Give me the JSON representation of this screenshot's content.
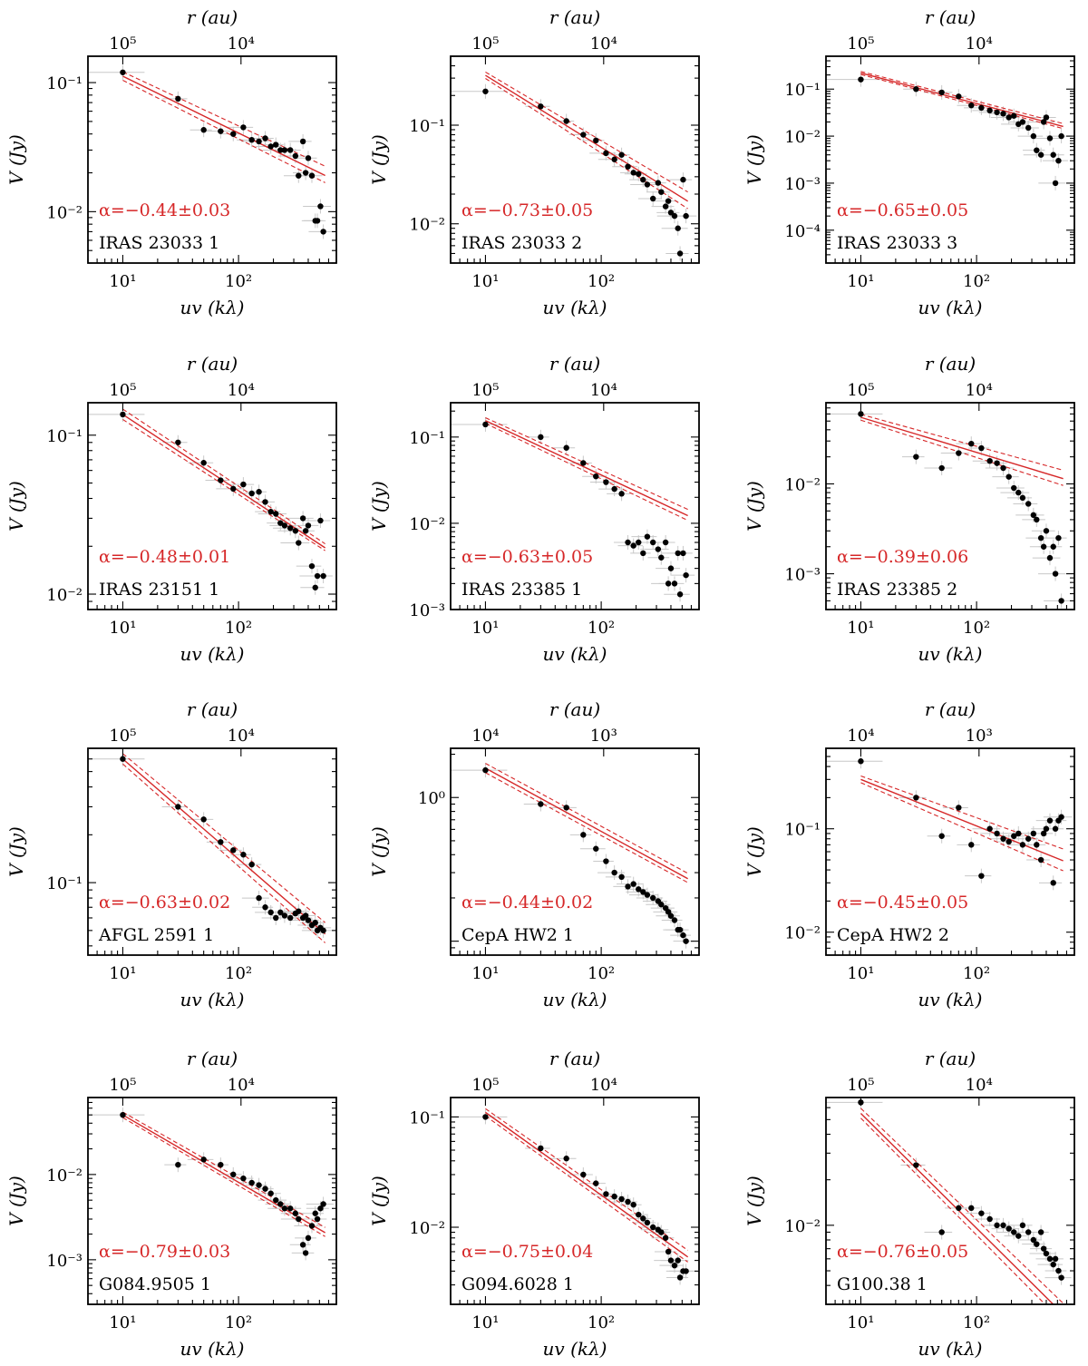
{
  "figure_title": "",
  "chart_data": [
    {
      "type": "scatter",
      "source": "IRAS 23033 1",
      "alpha_label": "α=−0.44±0.03",
      "xlabel": "uv (kλ)",
      "ylabel": "V (Jy)",
      "top_xlabel": "r (au)",
      "xlim": [
        5,
        700
      ],
      "ylim": [
        0.004,
        0.16
      ],
      "xticks": [
        10,
        100
      ],
      "xtick_labels": [
        "10¹",
        "10²"
      ],
      "yticks": [
        0.01,
        0.1
      ],
      "ytick_labels": [
        "10⁻²",
        "10⁻¹"
      ],
      "top_ticks": [
        10,
        105
      ],
      "top_tick_labels": [
        "10⁵",
        "10⁴"
      ],
      "fit": {
        "slope": -0.44,
        "y10": 0.112,
        "dy_hi": 0.06,
        "dy_lo": 0.06
      },
      "x": [
        10,
        30,
        50,
        70,
        90,
        110,
        130,
        150,
        170,
        190,
        210,
        230,
        250,
        280,
        310,
        330,
        360,
        380,
        400,
        430,
        460,
        480,
        510,
        540
      ],
      "y": [
        0.12,
        0.075,
        0.043,
        0.042,
        0.04,
        0.045,
        0.036,
        0.035,
        0.037,
        0.032,
        0.033,
        0.03,
        0.03,
        0.03,
        0.027,
        0.019,
        0.035,
        0.02,
        0.026,
        0.019,
        0.0085,
        0.0085,
        0.011,
        0.007
      ]
    },
    {
      "type": "scatter",
      "source": "IRAS 23033 2",
      "alpha_label": "α=−0.73±0.05",
      "xlabel": "uv (kλ)",
      "ylabel": "V (Jy)",
      "top_xlabel": "r (au)",
      "xlim": [
        5,
        700
      ],
      "ylim": [
        0.004,
        0.5
      ],
      "xticks": [
        10,
        100
      ],
      "xtick_labels": [
        "10¹",
        "10²"
      ],
      "yticks": [
        0.01,
        0.1
      ],
      "ytick_labels": [
        "10⁻²",
        "10⁻¹"
      ],
      "top_ticks": [
        10,
        105
      ],
      "top_tick_labels": [
        "10⁵",
        "10⁴"
      ],
      "fit": {
        "slope": -0.73,
        "y10": 0.32,
        "dy_hi": 0.08,
        "dy_lo": 0.08
      },
      "x": [
        10,
        30,
        50,
        70,
        90,
        110,
        130,
        150,
        170,
        190,
        210,
        230,
        250,
        280,
        310,
        330,
        360,
        380,
        400,
        430,
        460,
        480,
        510,
        540
      ],
      "y": [
        0.22,
        0.155,
        0.11,
        0.08,
        0.07,
        0.052,
        0.045,
        0.05,
        0.038,
        0.033,
        0.032,
        0.028,
        0.025,
        0.018,
        0.026,
        0.021,
        0.015,
        0.017,
        0.013,
        0.012,
        0.009,
        0.005,
        0.028,
        0.012
      ]
    },
    {
      "type": "scatter",
      "source": "IRAS 23033 3",
      "alpha_label": "α=−0.65±0.05",
      "xlabel": "uv (kλ)",
      "ylabel": "V (Jy)",
      "top_xlabel": "r (au)",
      "xlim": [
        5,
        700
      ],
      "ylim": [
        2e-05,
        0.5
      ],
      "xticks": [
        10,
        100
      ],
      "xtick_labels": [
        "10¹",
        "10²"
      ],
      "yticks": [
        0.0001,
        0.001,
        0.01,
        0.1
      ],
      "ytick_labels": [
        "10⁻⁴",
        "10⁻³",
        "10⁻²",
        "10⁻¹"
      ],
      "top_ticks": [
        10,
        105
      ],
      "top_tick_labels": [
        "10⁵",
        "10⁴"
      ],
      "fit": {
        "slope": -0.65,
        "y10": 0.22,
        "dy_hi": 0.05,
        "dy_lo": 0.05
      },
      "x": [
        10,
        30,
        50,
        70,
        90,
        110,
        130,
        150,
        170,
        190,
        210,
        230,
        250,
        280,
        310,
        330,
        360,
        380,
        400,
        430,
        460,
        480,
        510,
        540
      ],
      "y": [
        0.16,
        0.1,
        0.085,
        0.07,
        0.045,
        0.04,
        0.035,
        0.032,
        0.03,
        0.025,
        0.027,
        0.018,
        0.02,
        0.015,
        0.01,
        0.005,
        0.004,
        0.02,
        0.025,
        0.009,
        0.004,
        0.001,
        0.003,
        0.01
      ]
    },
    {
      "type": "scatter",
      "source": "IRAS 23151 1",
      "alpha_label": "α=−0.48±0.01",
      "xlabel": "uv (kλ)",
      "ylabel": "V (Jy)",
      "top_xlabel": "r (au)",
      "xlim": [
        5,
        700
      ],
      "ylim": [
        0.008,
        0.16
      ],
      "xticks": [
        10,
        100
      ],
      "xtick_labels": [
        "10¹",
        "10²"
      ],
      "yticks": [
        0.01,
        0.1
      ],
      "ytick_labels": [
        "10⁻²",
        "10⁻¹"
      ],
      "top_ticks": [
        10,
        105
      ],
      "top_tick_labels": [
        "10⁵",
        "10⁴"
      ],
      "fit": {
        "slope": -0.48,
        "y10": 0.135,
        "dy_hi": 0.02,
        "dy_lo": 0.02
      },
      "x": [
        10,
        30,
        50,
        70,
        90,
        110,
        130,
        150,
        170,
        190,
        210,
        230,
        250,
        280,
        310,
        330,
        360,
        380,
        400,
        430,
        460,
        480,
        510,
        540
      ],
      "y": [
        0.135,
        0.09,
        0.067,
        0.052,
        0.046,
        0.049,
        0.043,
        0.044,
        0.038,
        0.033,
        0.032,
        0.028,
        0.027,
        0.026,
        0.025,
        0.021,
        0.03,
        0.025,
        0.027,
        0.015,
        0.011,
        0.013,
        0.029,
        0.013
      ]
    },
    {
      "type": "scatter",
      "source": "IRAS 23385 1",
      "alpha_label": "α=−0.63±0.05",
      "xlabel": "uv (kλ)",
      "ylabel": "V (Jy)",
      "top_xlabel": "r (au)",
      "xlim": [
        5,
        700
      ],
      "ylim": [
        0.001,
        0.25
      ],
      "xticks": [
        10,
        100
      ],
      "xtick_labels": [
        "10¹",
        "10²"
      ],
      "yticks": [
        0.001,
        0.01,
        0.1
      ],
      "ytick_labels": [
        "10⁻³",
        "10⁻²",
        "10⁻¹"
      ],
      "top_ticks": [
        10,
        105
      ],
      "top_tick_labels": [
        "10⁵",
        "10⁴"
      ],
      "fit": {
        "slope": -0.63,
        "y10": 0.155,
        "dy_hi": 0.06,
        "dy_lo": 0.06
      },
      "x": [
        10,
        30,
        50,
        70,
        90,
        110,
        130,
        150,
        170,
        190,
        210,
        230,
        250,
        280,
        310,
        330,
        360,
        380,
        400,
        430,
        460,
        480,
        510,
        540
      ],
      "y": [
        0.14,
        0.1,
        0.075,
        0.05,
        0.035,
        0.03,
        0.025,
        0.022,
        0.006,
        0.0055,
        0.006,
        0.0045,
        0.007,
        0.006,
        0.005,
        0.004,
        0.006,
        0.002,
        0.003,
        0.002,
        0.0045,
        0.0015,
        0.0045,
        0.0025
      ]
    },
    {
      "type": "scatter",
      "source": "IRAS 23385 2",
      "alpha_label": "α=−0.39±0.06",
      "xlabel": "uv (kλ)",
      "ylabel": "V (Jy)",
      "top_xlabel": "r (au)",
      "xlim": [
        5,
        700
      ],
      "ylim": [
        0.0004,
        0.08
      ],
      "xticks": [
        10,
        100
      ],
      "xtick_labels": [
        "10¹",
        "10²"
      ],
      "yticks": [
        0.001,
        0.01
      ],
      "ytick_labels": [
        "10⁻³",
        "10⁻²"
      ],
      "top_ticks": [
        10,
        105
      ],
      "top_tick_labels": [
        "10⁵",
        "10⁴"
      ],
      "fit": {
        "slope": -0.39,
        "y10": 0.055,
        "dy_hi": 0.08,
        "dy_lo": 0.08
      },
      "x": [
        10,
        30,
        50,
        70,
        90,
        110,
        130,
        150,
        170,
        190,
        210,
        230,
        250,
        280,
        310,
        330,
        360,
        380,
        400,
        430,
        460,
        480,
        510,
        540
      ],
      "y": [
        0.06,
        0.02,
        0.015,
        0.022,
        0.028,
        0.025,
        0.018,
        0.017,
        0.015,
        0.012,
        0.009,
        0.008,
        0.007,
        0.006,
        0.0045,
        0.004,
        0.0025,
        0.002,
        0.003,
        0.0015,
        0.002,
        0.001,
        0.0025,
        0.0005
      ]
    },
    {
      "type": "scatter",
      "source": "AFGL 2591 1",
      "alpha_label": "α=−0.63±0.02",
      "xlabel": "uv (kλ)",
      "ylabel": "V (Jy)",
      "top_xlabel": "r (au)",
      "xlim": [
        5,
        700
      ],
      "ylim": [
        0.035,
        0.7
      ],
      "xticks": [
        10,
        100
      ],
      "xtick_labels": [
        "10¹",
        "10²"
      ],
      "yticks": [
        0.1
      ],
      "ytick_labels": [
        "10⁻¹"
      ],
      "top_ticks": [
        10,
        105
      ],
      "top_tick_labels": [
        "10⁵",
        "10⁴"
      ],
      "fit": {
        "slope": -0.63,
        "y10": 0.6,
        "dy_hi": 0.06,
        "dy_lo": 0.06
      },
      "x": [
        10,
        30,
        50,
        70,
        90,
        110,
        130,
        150,
        170,
        190,
        210,
        230,
        250,
        280,
        310,
        330,
        360,
        380,
        400,
        430,
        460,
        480,
        510,
        540
      ],
      "y": [
        0.6,
        0.3,
        0.25,
        0.18,
        0.16,
        0.15,
        0.13,
        0.08,
        0.07,
        0.065,
        0.06,
        0.065,
        0.062,
        0.06,
        0.064,
        0.066,
        0.06,
        0.062,
        0.058,
        0.054,
        0.056,
        0.05,
        0.052,
        0.05
      ]
    },
    {
      "type": "scatter",
      "source": "CepA HW2 1",
      "alpha_label": "α=−0.44±0.02",
      "xlabel": "uv (kλ)",
      "ylabel": "V (Jy)",
      "top_xlabel": "r (au)",
      "xlim": [
        5,
        700
      ],
      "ylim": [
        0.08,
        2.2
      ],
      "xticks": [
        10,
        100
      ],
      "xtick_labels": [
        "10¹",
        "10²"
      ],
      "yticks": [
        1
      ],
      "ytick_labels": [
        "10⁰"
      ],
      "top_ticks": [
        10,
        105
      ],
      "top_tick_labels": [
        "10⁴",
        "10³"
      ],
      "fit": {
        "slope": -0.44,
        "y10": 1.6,
        "dy_hi": 0.03,
        "dy_lo": 0.03
      },
      "x": [
        10,
        30,
        50,
        70,
        90,
        110,
        130,
        150,
        170,
        190,
        210,
        230,
        250,
        280,
        310,
        330,
        360,
        380,
        400,
        430,
        460,
        480,
        510,
        540
      ],
      "y": [
        1.55,
        0.9,
        0.85,
        0.55,
        0.44,
        0.36,
        0.3,
        0.28,
        0.24,
        0.25,
        0.23,
        0.22,
        0.21,
        0.2,
        0.19,
        0.18,
        0.17,
        0.16,
        0.15,
        0.14,
        0.12,
        0.12,
        0.11,
        0.1
      ]
    },
    {
      "type": "scatter",
      "source": "CepA HW2 2",
      "alpha_label": "α=−0.45±0.05",
      "xlabel": "uv (kλ)",
      "ylabel": "V (Jy)",
      "top_xlabel": "r (au)",
      "xlim": [
        5,
        700
      ],
      "ylim": [
        0.006,
        0.6
      ],
      "xticks": [
        10,
        100
      ],
      "xtick_labels": [
        "10¹",
        "10²"
      ],
      "yticks": [
        0.01,
        0.1
      ],
      "ytick_labels": [
        "10⁻²",
        "10⁻¹"
      ],
      "top_ticks": [
        10,
        105
      ],
      "top_tick_labels": [
        "10⁴",
        "10³"
      ],
      "fit": {
        "slope": -0.45,
        "y10": 0.3,
        "dy_hi": 0.1,
        "dy_lo": 0.1
      },
      "x": [
        10,
        30,
        50,
        70,
        90,
        110,
        130,
        150,
        170,
        190,
        210,
        230,
        250,
        280,
        310,
        330,
        360,
        380,
        400,
        430,
        460,
        480,
        510,
        540
      ],
      "y": [
        0.45,
        0.2,
        0.085,
        0.16,
        0.07,
        0.035,
        0.1,
        0.09,
        0.08,
        0.075,
        0.085,
        0.09,
        0.07,
        0.08,
        0.09,
        0.07,
        0.05,
        0.09,
        0.1,
        0.12,
        0.03,
        0.1,
        0.12,
        0.13
      ]
    },
    {
      "type": "scatter",
      "source": "G084.9505 1",
      "alpha_label": "α=−0.79±0.03",
      "xlabel": "uv (kλ)",
      "ylabel": "V (Jy)",
      "top_xlabel": "r (au)",
      "xlim": [
        5,
        700
      ],
      "ylim": [
        0.0003,
        0.08
      ],
      "xticks": [
        10,
        100
      ],
      "xtick_labels": [
        "10¹",
        "10²"
      ],
      "yticks": [
        0.001,
        0.01
      ],
      "ytick_labels": [
        "10⁻³",
        "10⁻²"
      ],
      "top_ticks": [
        10,
        105
      ],
      "top_tick_labels": [
        "10⁵",
        "10⁴"
      ],
      "fit": {
        "slope": -0.79,
        "y10": 0.05,
        "dy_hi": 0.05,
        "dy_lo": 0.05
      },
      "x": [
        10,
        30,
        50,
        70,
        90,
        110,
        130,
        150,
        170,
        190,
        210,
        230,
        250,
        280,
        310,
        330,
        360,
        380,
        400,
        430,
        460,
        480,
        510,
        540
      ],
      "y": [
        0.05,
        0.013,
        0.015,
        0.013,
        0.01,
        0.009,
        0.008,
        0.0075,
        0.0068,
        0.006,
        0.005,
        0.0045,
        0.004,
        0.004,
        0.0035,
        0.003,
        0.0015,
        0.0012,
        0.0018,
        0.0025,
        0.0035,
        0.003,
        0.004,
        0.0045
      ]
    },
    {
      "type": "scatter",
      "source": "G094.6028 1",
      "alpha_label": "α=−0.75±0.04",
      "xlabel": "uv (kλ)",
      "ylabel": "V (Jy)",
      "top_xlabel": "r (au)",
      "xlim": [
        5,
        700
      ],
      "ylim": [
        0.002,
        0.15
      ],
      "xticks": [
        10,
        100
      ],
      "xtick_labels": [
        "10¹",
        "10²"
      ],
      "yticks": [
        0.01,
        0.1
      ],
      "ytick_labels": [
        "10⁻²",
        "10⁻¹"
      ],
      "top_ticks": [
        10,
        105
      ],
      "top_tick_labels": [
        "10⁵",
        "10⁴"
      ],
      "fit": {
        "slope": -0.75,
        "y10": 0.11,
        "dy_hi": 0.05,
        "dy_lo": 0.05
      },
      "x": [
        10,
        30,
        50,
        70,
        90,
        110,
        130,
        150,
        170,
        190,
        210,
        230,
        250,
        280,
        310,
        330,
        360,
        380,
        400,
        430,
        460,
        480,
        510,
        540
      ],
      "y": [
        0.1,
        0.052,
        0.042,
        0.03,
        0.025,
        0.02,
        0.019,
        0.018,
        0.017,
        0.016,
        0.013,
        0.012,
        0.011,
        0.01,
        0.0095,
        0.009,
        0.008,
        0.006,
        0.005,
        0.0045,
        0.005,
        0.0035,
        0.004,
        0.004
      ]
    },
    {
      "type": "scatter",
      "source": "G100.38 1",
      "alpha_label": "α=−0.76±0.05",
      "xlabel": "uv (kλ)",
      "ylabel": "V (Jy)",
      "top_xlabel": "r (au)",
      "xlim": [
        5,
        700
      ],
      "ylim": [
        0.003,
        0.07
      ],
      "xticks": [
        10,
        100
      ],
      "xtick_labels": [
        "10¹",
        "10²"
      ],
      "yticks": [
        0.01
      ],
      "ytick_labels": [
        "10⁻²"
      ],
      "top_ticks": [
        10,
        105
      ],
      "top_tick_labels": [
        "10⁵",
        "10⁴"
      ],
      "fit": {
        "slope": -0.76,
        "y10": 0.055,
        "dy_hi": 0.06,
        "dy_lo": 0.06
      },
      "x": [
        10,
        30,
        50,
        70,
        90,
        110,
        130,
        150,
        170,
        190,
        210,
        230,
        250,
        280,
        310,
        330,
        360,
        380,
        400,
        430,
        460,
        480,
        510,
        540
      ],
      "y": [
        0.065,
        0.025,
        0.009,
        0.013,
        0.013,
        0.012,
        0.011,
        0.01,
        0.01,
        0.0095,
        0.009,
        0.0085,
        0.01,
        0.009,
        0.008,
        0.0075,
        0.009,
        0.007,
        0.0065,
        0.006,
        0.0055,
        0.006,
        0.005,
        0.0045
      ]
    }
  ]
}
